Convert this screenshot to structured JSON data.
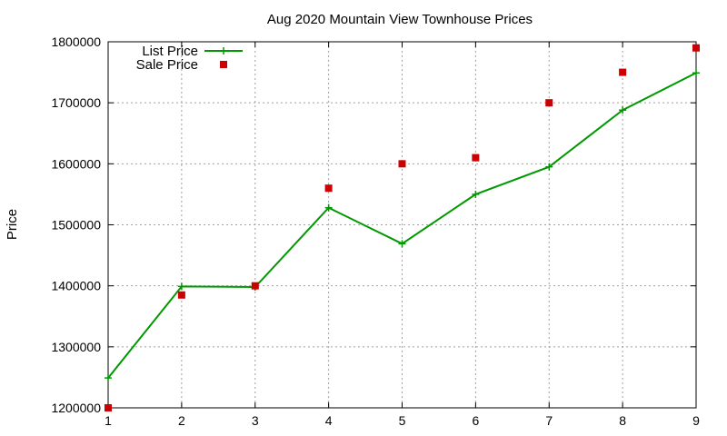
{
  "chart_data": {
    "type": "line",
    "title": "Aug 2020 Mountain View Townhouse Prices",
    "xlabel": "",
    "ylabel": "Price",
    "x": [
      1,
      2,
      3,
      4,
      5,
      6,
      7,
      8,
      9
    ],
    "xlim": [
      1,
      9
    ],
    "ylim": [
      1200000,
      1800000
    ],
    "x_ticks": [
      "1",
      "2",
      "3",
      "4",
      "5",
      "6",
      "7",
      "8",
      "9"
    ],
    "y_ticks": [
      "1200000",
      "1300000",
      "1400000",
      "1500000",
      "1600000",
      "1700000",
      "1800000"
    ],
    "grid": true,
    "legend_position": "top-left",
    "series": [
      {
        "name": "List Price",
        "style": "line-with-plus-markers",
        "color": "#009900",
        "values": [
          1249000,
          1399000,
          1398000,
          1528000,
          1469000,
          1550000,
          1595000,
          1688000,
          1749000
        ]
      },
      {
        "name": "Sale Price",
        "style": "square-markers",
        "color": "#cc0000",
        "values": [
          1200000,
          1385000,
          1400000,
          1560000,
          1600000,
          1610000,
          1700000,
          1750000,
          1790000
        ]
      }
    ]
  }
}
